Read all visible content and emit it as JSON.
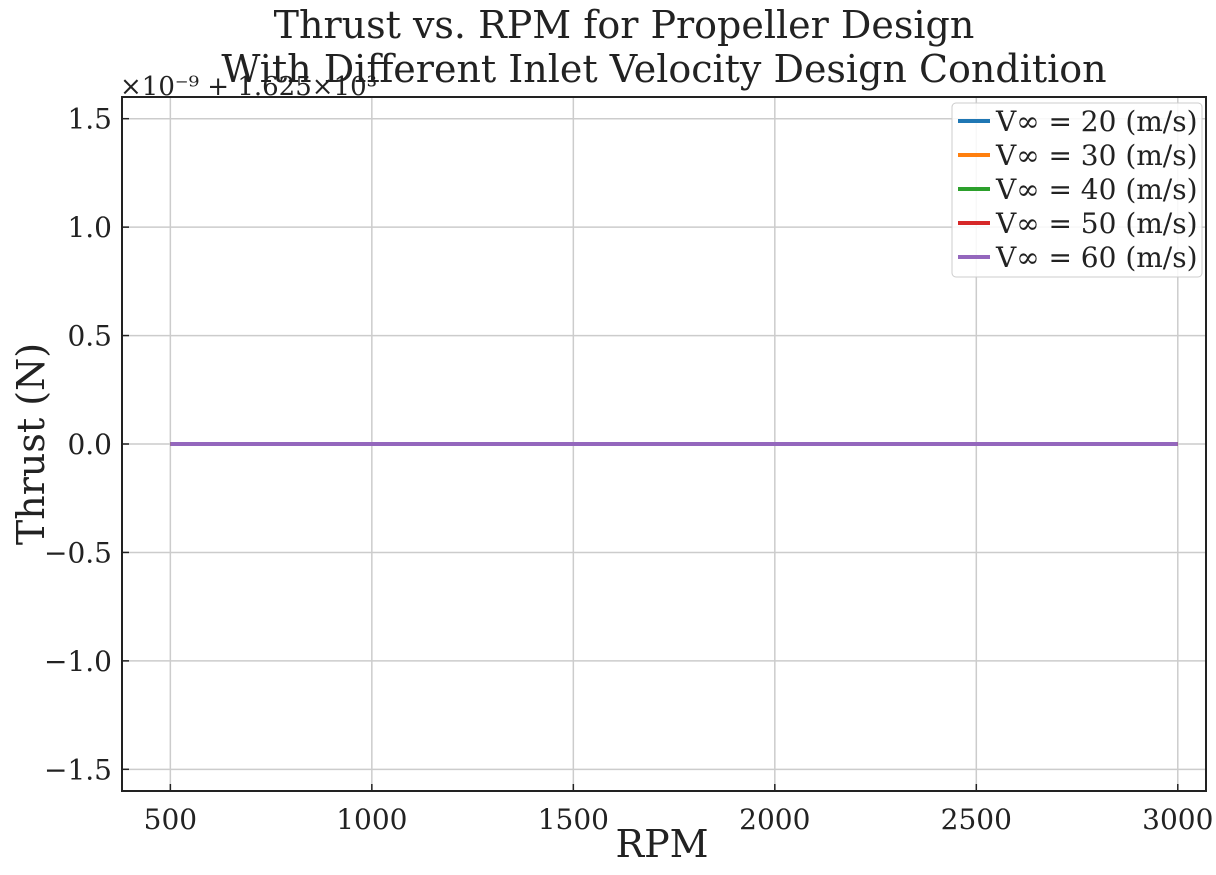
{
  "chart_data": {
    "type": "line",
    "title_lines": [
      "Thrust vs. RPM for Propeller Design",
      "With Different Inlet Velocity Design Condition"
    ],
    "xlabel": "RPM",
    "ylabel": "Thrust (N)",
    "y_offset_label": "×10⁻⁹ + 1.625×10³",
    "xlim": [
      380,
      3070
    ],
    "ylim": [
      -1.6,
      1.6
    ],
    "xticks": [
      500,
      1000,
      1500,
      2000,
      2500,
      3000
    ],
    "yticks": [
      1.5,
      1.0,
      0.5,
      0.0,
      -0.5,
      -1.0,
      -1.5
    ],
    "ytick_labels": [
      "1.5",
      "1.0",
      "0.5",
      "0.0",
      "−0.5",
      "−1.0",
      "−1.5"
    ],
    "grid": true,
    "legend_position": "top-right",
    "x": [
      500,
      3000
    ],
    "series": [
      {
        "name": "V∞ = 20 (m/s)",
        "color": "#1f77b4",
        "values": [
          0.0,
          0.0
        ]
      },
      {
        "name": "V∞ = 30 (m/s)",
        "color": "#ff7f0e",
        "values": [
          0.0,
          0.0
        ]
      },
      {
        "name": "V∞ = 40 (m/s)",
        "color": "#2ca02c",
        "values": [
          0.0,
          0.0
        ]
      },
      {
        "name": "V∞ = 50 (m/s)",
        "color": "#d62728",
        "values": [
          0.0,
          0.0
        ]
      },
      {
        "name": "V∞ = 60 (m/s)",
        "color": "#9467bd",
        "values": [
          0.0,
          0.0
        ]
      }
    ]
  }
}
